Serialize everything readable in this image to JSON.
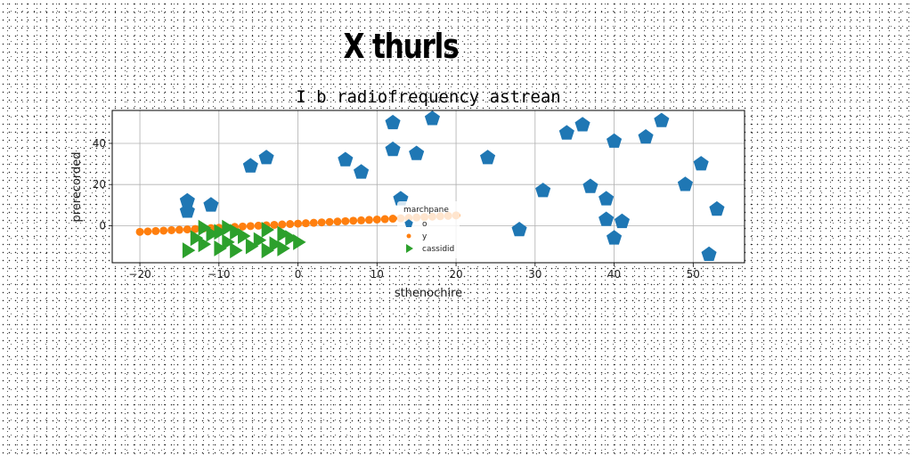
{
  "figure_title": "X thurls",
  "chart_data": {
    "type": "scatter",
    "title": "I b radiofrequency astrean",
    "xlabel": "sthenochire",
    "ylabel": "prerecorded",
    "xlim": [
      -23.5,
      56.5
    ],
    "ylim": [
      -18,
      56
    ],
    "xticks": [
      -20,
      -10,
      0,
      10,
      20,
      30,
      40,
      50
    ],
    "yticks": [
      0,
      20,
      40
    ],
    "grid": true,
    "legend": {
      "title": "marchpane",
      "placement": "center"
    },
    "series": [
      {
        "name": "o",
        "marker": "pentagon",
        "color": "#1f77b4",
        "x": [
          -14,
          -14,
          -11,
          -6,
          -4,
          6,
          8,
          12,
          12,
          13,
          15,
          17,
          24,
          28,
          31,
          34,
          36,
          37,
          39,
          39,
          40,
          40,
          41,
          44,
          46,
          49,
          51,
          52,
          53
        ],
        "y": [
          12,
          7,
          10,
          29,
          33,
          32,
          26,
          50,
          37,
          13,
          35,
          52,
          33,
          -2,
          17,
          45,
          49,
          19,
          13,
          3,
          41,
          -6,
          2,
          43,
          51,
          20,
          30,
          -14,
          8
        ]
      },
      {
        "name": "y",
        "marker": "circle",
        "color": "#ff7f0e",
        "x": [
          -20,
          -19,
          -18,
          -17,
          -16,
          -15,
          -14,
          -13,
          -12,
          -11,
          -10,
          -9,
          -8,
          -7,
          -6,
          -5,
          -4,
          -3,
          -2,
          -1,
          0,
          1,
          2,
          3,
          4,
          5,
          6,
          7,
          8,
          9,
          10,
          11,
          12,
          13,
          14,
          15,
          16,
          17,
          18,
          19,
          20
        ],
        "y": [
          -3.0,
          -2.8,
          -2.6,
          -2.4,
          -2.2,
          -2.0,
          -1.8,
          -1.6,
          -1.4,
          -1.2,
          -1.0,
          -0.8,
          -0.6,
          -0.4,
          -0.2,
          0.0,
          0.2,
          0.4,
          0.6,
          0.8,
          1.0,
          1.2,
          1.4,
          1.6,
          1.8,
          2.0,
          2.2,
          2.4,
          2.6,
          2.8,
          3.0,
          3.2,
          3.4,
          3.6,
          3.8,
          4.0,
          4.2,
          4.4,
          4.6,
          4.8,
          5.0
        ]
      },
      {
        "name": "cassidid",
        "marker": "triangle-right",
        "color": "#2ca02c",
        "x": [
          -14,
          -13,
          -12,
          -11,
          -10,
          -10,
          -9,
          -9,
          -8,
          -7,
          -6,
          -5,
          -4,
          -3,
          -2,
          -2,
          -1,
          0,
          -12,
          -8,
          -4
        ],
        "y": [
          -12,
          -6,
          -9,
          -4,
          -11,
          -3,
          -8,
          -1,
          -12,
          -5,
          -10,
          -7,
          -12,
          -9,
          -4,
          -11,
          -6,
          -8,
          -1,
          -3,
          -2
        ]
      }
    ]
  }
}
